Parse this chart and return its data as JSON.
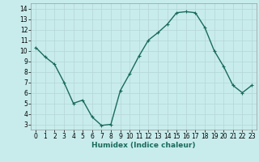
{
  "x": [
    0,
    1,
    2,
    3,
    4,
    5,
    6,
    7,
    8,
    9,
    10,
    11,
    12,
    13,
    14,
    15,
    16,
    17,
    18,
    19,
    20,
    21,
    22,
    23
  ],
  "y": [
    10.3,
    9.4,
    8.7,
    7.0,
    5.0,
    5.3,
    3.7,
    2.9,
    3.0,
    6.2,
    7.8,
    9.5,
    11.0,
    11.7,
    12.5,
    13.6,
    13.7,
    13.6,
    12.2,
    10.0,
    8.5,
    6.7,
    6.0,
    6.7
  ],
  "line_color": "#1a6b5a",
  "marker": "+",
  "marker_color": "#1a6b5a",
  "bg_color": "#c8ecec",
  "grid_color": "#b8d8d8",
  "xlabel": "Humidex (Indice chaleur)",
  "xlim": [
    -0.5,
    23.5
  ],
  "ylim": [
    2.5,
    14.5
  ],
  "yticks": [
    3,
    4,
    5,
    6,
    7,
    8,
    9,
    10,
    11,
    12,
    13,
    14
  ],
  "xticks": [
    0,
    1,
    2,
    3,
    4,
    5,
    6,
    7,
    8,
    9,
    10,
    11,
    12,
    13,
    14,
    15,
    16,
    17,
    18,
    19,
    20,
    21,
    22,
    23
  ],
  "tick_label_fontsize": 5.5,
  "xlabel_fontsize": 6.5,
  "line_width": 1.0,
  "marker_size": 3.5,
  "marker_linewidth": 0.8
}
